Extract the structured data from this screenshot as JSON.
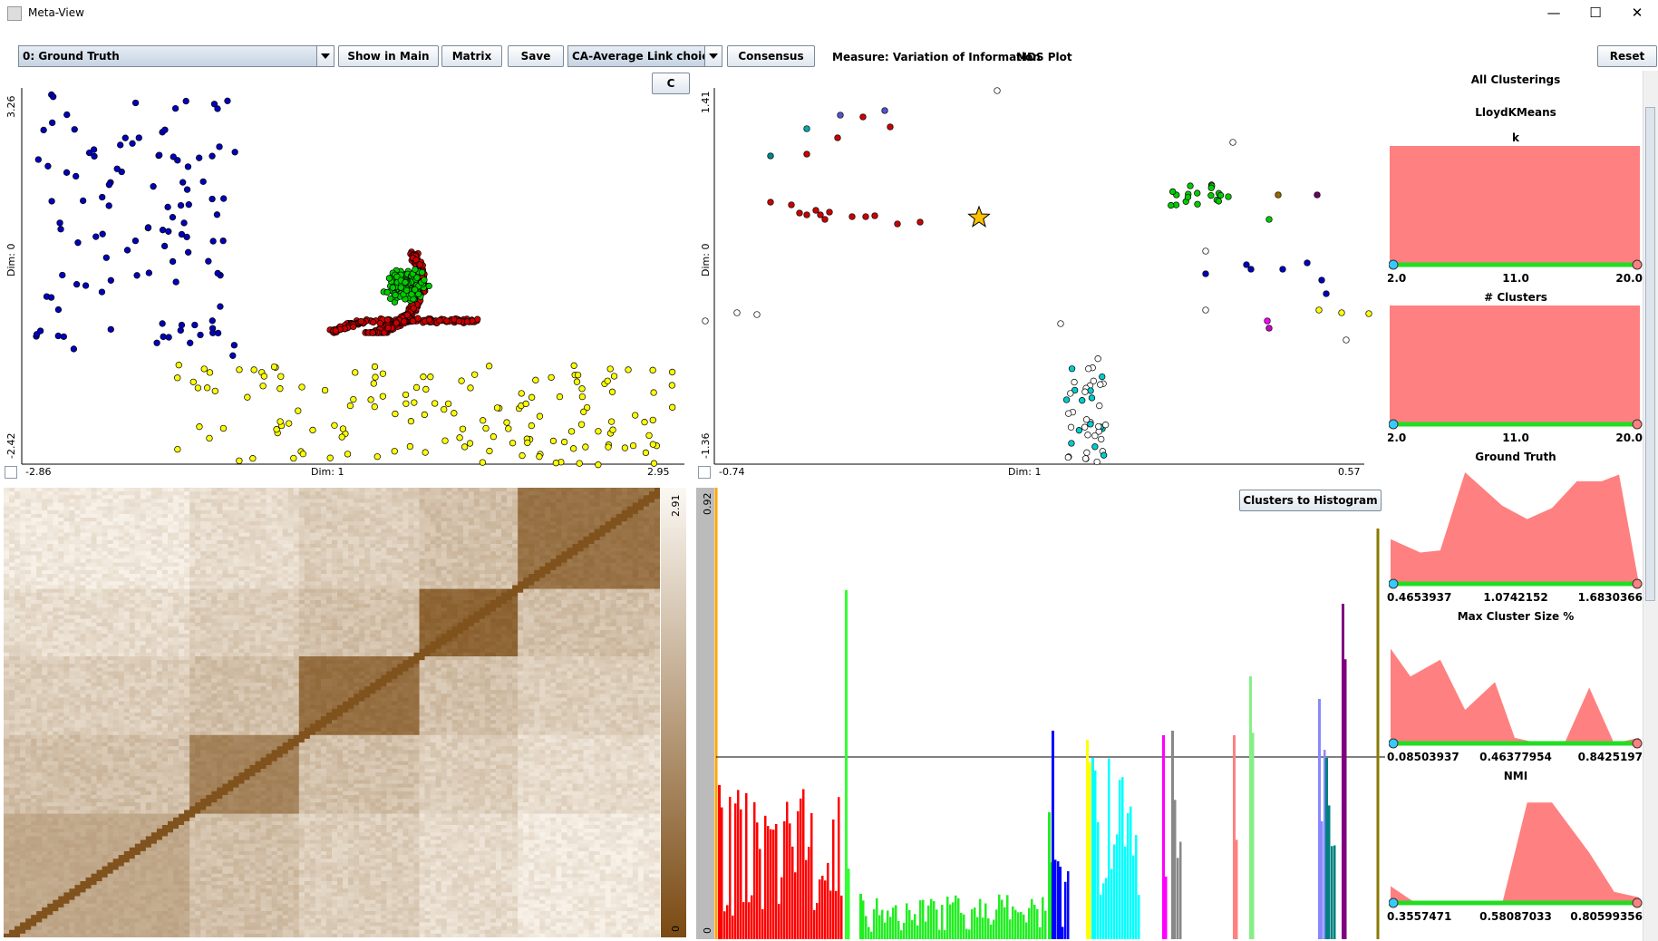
{
  "window": {
    "title": "Meta-View",
    "minimize": "—",
    "maximize": "☐",
    "close": "✕"
  },
  "toolbar": {
    "clustering_select": "0: Ground Truth",
    "show_in_main": "Show in Main",
    "matrix": "Matrix",
    "save": "Save",
    "link_select": "CA-Average Link choice",
    "consensus": "Consensus",
    "measure": "Measure: Variation of Information",
    "mds": "MDS Plot",
    "reset": "Reset",
    "c_button": "C"
  },
  "left_plot": {
    "ymax": "3.26",
    "ymin": "-2.42",
    "xmin": "-2.86",
    "xmax": "2.95",
    "xlabel": "Dim: 1",
    "ylabel": "Dim: 0"
  },
  "mds_plot": {
    "ymax": "1.41",
    "ymin": "-1.36",
    "xmin": "-0.74",
    "xmax": "0.57",
    "xlabel": "Dim: 1",
    "ylabel": "Dim: 0"
  },
  "heatmap": {
    "max": "2.91",
    "min": "0"
  },
  "histogram": {
    "ymax": "0.92",
    "ymin": "0",
    "button": "Clusters to Histogram"
  },
  "side": {
    "all": "All Clusterings",
    "algo": "LloydKMeans",
    "panels": [
      {
        "title": "k",
        "min": "2.0",
        "mid": "11.0",
        "max": "20.0"
      },
      {
        "title": "# Clusters",
        "min": "2.0",
        "mid": "11.0",
        "max": "20.0"
      },
      {
        "title": "Ground Truth",
        "min": "0.4653937",
        "mid": "1.0742152",
        "max": "1.6830366"
      },
      {
        "title": "Max Cluster Size %",
        "min": "0.08503937",
        "mid": "0.46377954",
        "max": "0.8425197"
      },
      {
        "title": "NMI",
        "min": "0.3557471",
        "mid": "0.58087033",
        "max": "0.80599356"
      }
    ]
  },
  "colors": {
    "accent": "#ff8080",
    "slider": "#22dd22",
    "knob_left": "#33ccff",
    "knob_right": "#ff8080",
    "heat_dark": "#7a4a12",
    "heat_light": "#f7f1e8"
  }
}
